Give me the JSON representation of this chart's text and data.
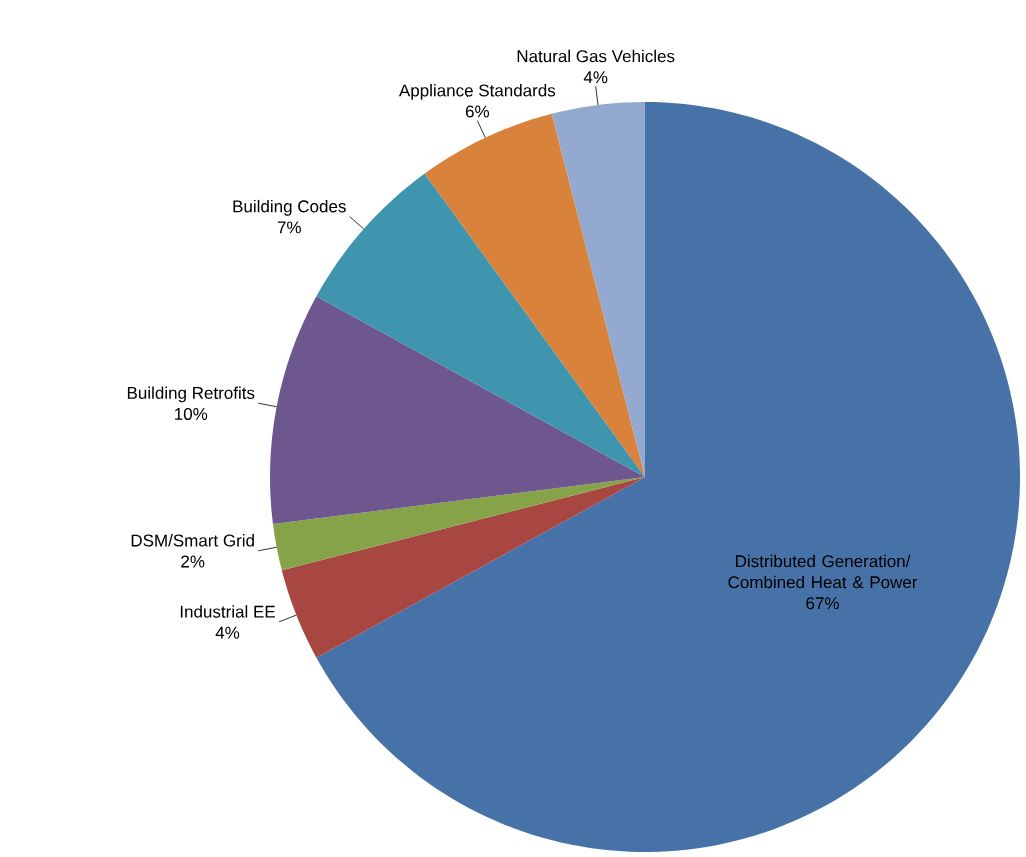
{
  "chart_data": {
    "type": "pie",
    "categories": [
      "Distributed Generation/ Combined Heat & Power",
      "Industrial EE",
      "DSM/Smart Grid",
      "Building Retrofits",
      "Building Codes",
      "Appliance Standards",
      "Natural Gas Vehicles"
    ],
    "values": [
      67,
      4,
      2,
      10,
      7,
      6,
      4
    ],
    "colors": [
      "#4672a8",
      "#a84642",
      "#87a34a",
      "#6e568e",
      "#3f95ad",
      "#d9823b",
      "#93a9cf"
    ],
    "value_labels": [
      "67%",
      "4%",
      "2%",
      "10%",
      "7%",
      "6%",
      "4%"
    ]
  }
}
